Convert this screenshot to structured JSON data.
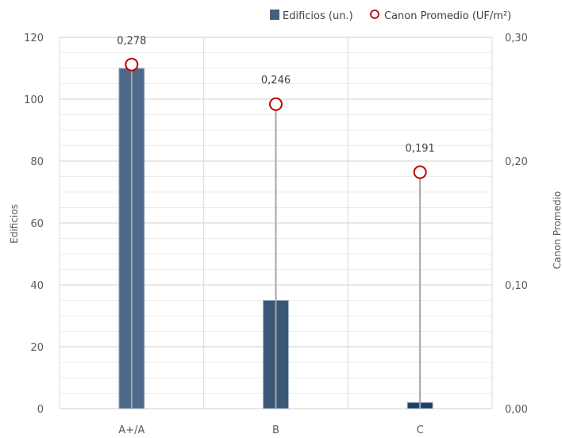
{
  "chart_data": {
    "type": "bar",
    "categories": [
      "A+/A",
      "B",
      "C"
    ],
    "series": [
      {
        "name": "Edificios (un.)",
        "axis": "left",
        "kind": "bar",
        "values": [
          110,
          35,
          2
        ]
      },
      {
        "name": "Canon Promedio (UF/m²)",
        "axis": "right",
        "kind": "marker",
        "values": [
          0.278,
          0.246,
          0.191
        ]
      }
    ],
    "data_labels": [
      "0,278",
      "0,246",
      "0,191"
    ],
    "ylabel": "Edificios",
    "y2label": "Canon Promedio",
    "ylim": [
      0,
      120
    ],
    "y2lim": [
      0,
      0.3
    ],
    "yticks": [
      "0",
      "20",
      "40",
      "60",
      "80",
      "100",
      "120"
    ],
    "y2ticks": [
      "0,00",
      "0,10",
      "0,20",
      "0,30"
    ],
    "grid": true,
    "legend_position": "top",
    "colors": {
      "bars": [
        "#4d6a8a",
        "#3c5778",
        "#1f3f66"
      ],
      "marker_stroke": "#c00000",
      "stem": "#a6a6a6",
      "grid": "#d9d9d9",
      "bar_edge": "#a9b8c9"
    }
  }
}
